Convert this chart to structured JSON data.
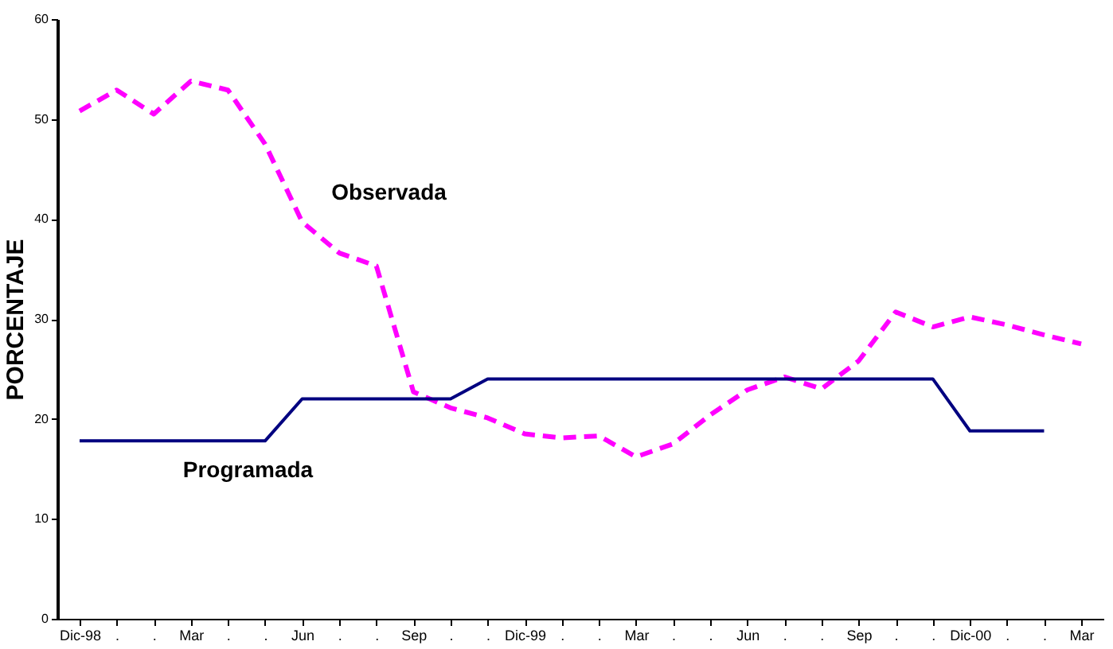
{
  "chart_data": {
    "type": "line",
    "ylabel": "PORCENTAJE",
    "categories": [
      "Dic-98",
      ".",
      ".",
      "Mar",
      ".",
      ".",
      "Jun",
      ".",
      ".",
      "Sep",
      ".",
      ".",
      "Dic-99",
      ".",
      ".",
      "Mar",
      ".",
      ".",
      "Jun",
      ".",
      ".",
      "Sep",
      ".",
      ".",
      "Dic-00",
      ".",
      ".",
      "Mar"
    ],
    "series": [
      {
        "name": "Observada",
        "color": "#ff00ff",
        "line_style": "dashed",
        "values": [
          50.8,
          52.9,
          50.5,
          53.8,
          52.9,
          47.5,
          39.7,
          36.6,
          35.3,
          22.7,
          21.1,
          20.1,
          18.5,
          18.1,
          18.3,
          16.2,
          17.5,
          20.4,
          22.9,
          24.2,
          23.0,
          25.8,
          30.7,
          29.2,
          30.2,
          29.4,
          28.4,
          27.5
        ]
      },
      {
        "name": "Programada",
        "color": "#000080",
        "line_style": "solid",
        "values": [
          17.8,
          17.8,
          17.8,
          17.8,
          17.8,
          17.8,
          22,
          22,
          22,
          22,
          22,
          24,
          24,
          24,
          24,
          24,
          24,
          24,
          24,
          24,
          24,
          24,
          24,
          24,
          18.8,
          18.8,
          18.8,
          null
        ]
      }
    ],
    "ylim": [
      0,
      60
    ],
    "yticks": [
      0,
      10,
      20,
      30,
      40,
      50,
      60
    ],
    "grid": false,
    "marker": "none"
  }
}
